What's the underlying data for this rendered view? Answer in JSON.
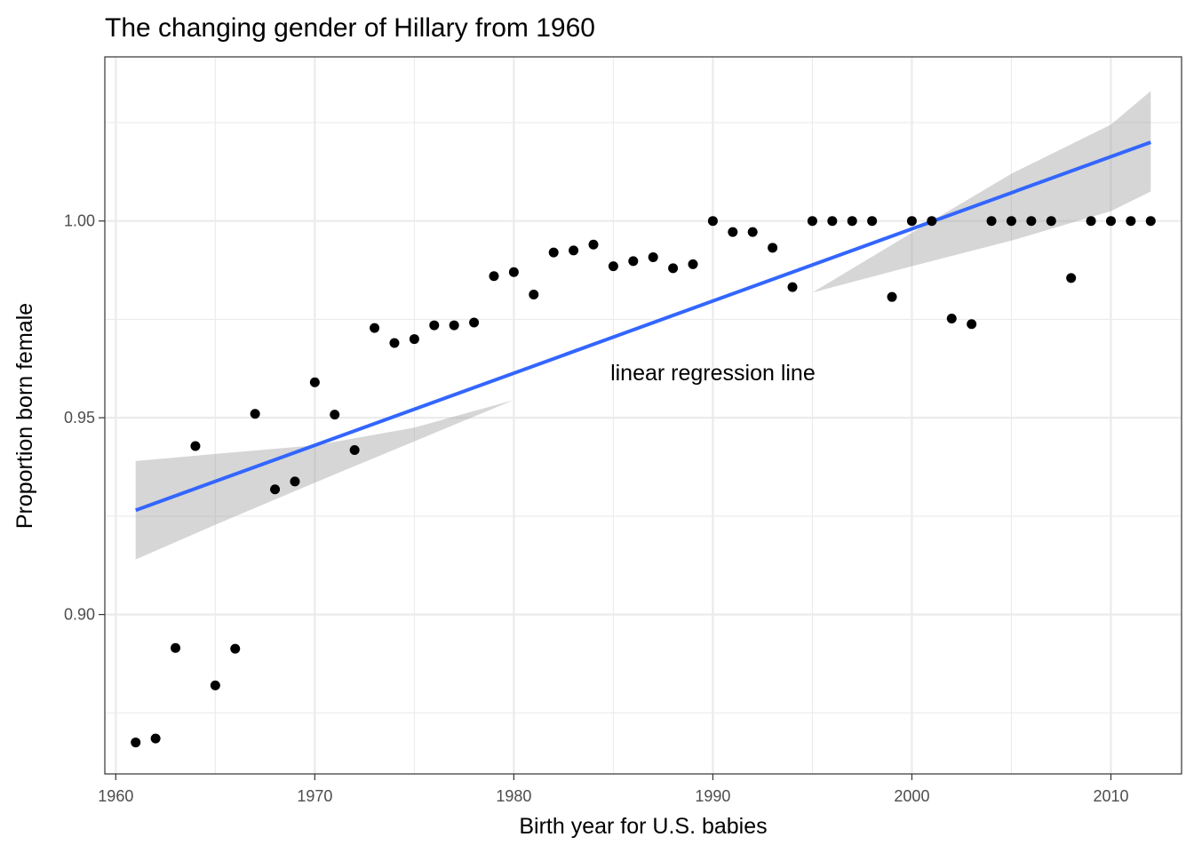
{
  "chart_data": {
    "type": "scatter",
    "title": "The changing gender of Hillary from 1960",
    "xlabel": "Birth year for U.S. babies",
    "ylabel": "Proportion born female",
    "xlim": [
      1959.45,
      2013.55
    ],
    "ylim": [
      0.8595,
      1.0417
    ],
    "x_ticks": [
      1960,
      1970,
      1980,
      1990,
      2000,
      2010
    ],
    "x_tick_labels": [
      "1960",
      "1970",
      "1980",
      "1990",
      "2000",
      "2010"
    ],
    "x_minor_ticks": [
      1965,
      1975,
      1985,
      1995,
      2005
    ],
    "y_ticks": [
      0.9,
      0.95,
      1.0
    ],
    "y_tick_labels": [
      "0.90",
      "0.95",
      "1.00"
    ],
    "y_minor_ticks": [
      0.875,
      0.925,
      0.975,
      1.025
    ],
    "grid": true,
    "legend": "none",
    "colors": {
      "points": "#000000",
      "regression_line": "#3366FF",
      "confidence_band": "#999999",
      "grid": "#EBEBEB",
      "panel_border": "#333333"
    },
    "points": {
      "x": [
        1961,
        1962,
        1963,
        1964,
        1965,
        1966,
        1967,
        1968,
        1969,
        1970,
        1971,
        1972,
        1973,
        1974,
        1975,
        1976,
        1977,
        1978,
        1979,
        1980,
        1981,
        1982,
        1983,
        1984,
        1985,
        1986,
        1987,
        1988,
        1989,
        1990,
        1991,
        1992,
        1993,
        1994,
        1995,
        1996,
        1997,
        1998,
        1999,
        2000,
        2001,
        2002,
        2003,
        2004,
        2005,
        2006,
        2007,
        2008,
        2009,
        2010,
        2011,
        2012
      ],
      "y": [
        0.8675,
        0.8685,
        0.8915,
        0.9428,
        0.882,
        0.8913,
        0.951,
        0.9318,
        0.9338,
        0.959,
        0.9508,
        0.9418,
        0.9728,
        0.969,
        0.97,
        0.9735,
        0.9735,
        0.9742,
        0.986,
        0.987,
        0.9813,
        0.992,
        0.9925,
        0.994,
        0.9885,
        0.9898,
        0.9908,
        0.988,
        0.989,
        1.0,
        0.9972,
        0.9972,
        0.9932,
        0.9832,
        1.0,
        1.0,
        1.0,
        1.0,
        0.9807,
        1.0,
        1.0,
        0.9752,
        0.9738,
        1.0,
        1.0,
        1.0,
        1.0,
        0.9855,
        1.0,
        1.0,
        1.0,
        1.0
      ]
    },
    "regression": {
      "x": [
        1961,
        2012
      ],
      "y": [
        0.9265,
        1.02
      ]
    },
    "confidence_band": {
      "x": [
        1961,
        1965,
        1970,
        1975,
        1980,
        1985,
        1990,
        1995,
        2000,
        2005,
        2010,
        2012
      ],
      "lower": [
        0.914,
        0.9228,
        0.9335,
        0.944,
        0.9545,
        0.964,
        0.9735,
        0.9818,
        0.9885,
        0.995,
        1.0025,
        1.0075
      ],
      "upper": [
        0.939,
        0.9408,
        0.943,
        0.9475,
        0.9545,
        0.964,
        0.9735,
        0.9818,
        0.997,
        1.012,
        1.0245,
        1.033
      ]
    },
    "annotations": [
      {
        "text": "linear regression line",
        "x": 1990,
        "y": 0.9595
      }
    ]
  }
}
